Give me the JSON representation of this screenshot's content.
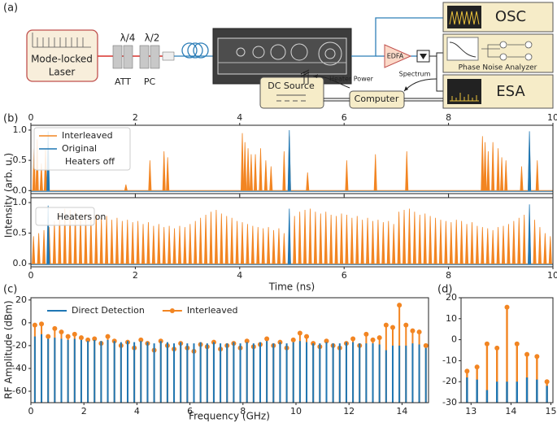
{
  "diagram": {
    "panel_label": "(a)",
    "laser": [
      "Mode-locked",
      "Laser"
    ],
    "att": "ATT",
    "pc": "PC",
    "qwp": "λ/4",
    "hwp": "λ/2",
    "edfa": "EDFA",
    "osc": "OSC",
    "pna": "Phase Noise Analyzer",
    "esa": "ESA",
    "dc_source": "DC Source",
    "heater_power": "Heater Power",
    "spectrum": "Spectrum",
    "computer": "Computer"
  },
  "chart_data": [
    {
      "type": "spike",
      "panel_label": "(b)",
      "xlim": [
        0,
        10
      ],
      "ylim": [
        -0.05,
        1.08
      ],
      "xticks": [
        0,
        2,
        4,
        6,
        8,
        10
      ],
      "yticks": [
        {
          "value": 0,
          "label": "0.0"
        },
        0.5,
        {
          "value": 1,
          "label": "1.0"
        }
      ],
      "legend": "upper left",
      "annotation": "Heaters off",
      "series": [
        {
          "name": "Interleaved",
          "color": "#f28522",
          "x": [
            0.06,
            0.12,
            0.2,
            0.28,
            1.82,
            2.28,
            2.55,
            2.62,
            4.05,
            4.1,
            4.16,
            4.22,
            4.3,
            4.4,
            4.5,
            4.6,
            4.85,
            4.95,
            5.3,
            6.05,
            6.6,
            7.2,
            8.65,
            8.7,
            8.76,
            8.85,
            8.95,
            9.02,
            9.1,
            9.4,
            9.55,
            9.7
          ],
          "values": [
            0.7,
            0.85,
            0.45,
            0.7,
            0.1,
            0.5,
            0.65,
            0.55,
            0.95,
            0.8,
            0.7,
            0.6,
            0.6,
            0.7,
            0.5,
            0.4,
            0.65,
            0.9,
            0.3,
            0.5,
            0.6,
            0.65,
            0.9,
            0.8,
            0.65,
            0.8,
            0.7,
            0.55,
            0.5,
            0.4,
            0.85,
            0.5
          ]
        },
        {
          "name": "Original",
          "color": "#1f77b4",
          "x": [
            0.33,
            4.95,
            9.55
          ],
          "values": [
            0.98,
            1.0,
            0.98
          ]
        }
      ]
    },
    {
      "type": "spike",
      "xlim": [
        0,
        10
      ],
      "ylim": [
        -0.05,
        1.08
      ],
      "xticks": [
        0,
        2,
        4,
        6,
        8,
        10
      ],
      "yticks": [
        {
          "value": 0,
          "label": "0.0"
        },
        0.5,
        {
          "value": 1,
          "label": "1.0"
        }
      ],
      "x_label": "Time (ns)",
      "y_label": "Intensity (arb. u.)",
      "annotation": "Heaters on",
      "series": [
        {
          "color": "#f28522",
          "x": [
            0.05,
            0.15,
            0.25,
            0.35,
            0.45,
            0.55,
            0.65,
            0.75,
            0.85,
            0.95,
            1.05,
            1.15,
            1.25,
            1.35,
            1.45,
            1.55,
            1.65,
            1.75,
            1.85,
            1.95,
            2.05,
            2.15,
            2.25,
            2.35,
            2.45,
            2.55,
            2.65,
            2.75,
            2.85,
            2.95,
            3.05,
            3.15,
            3.25,
            3.35,
            3.45,
            3.55,
            3.65,
            3.75,
            3.85,
            3.95,
            4.05,
            4.15,
            4.25,
            4.35,
            4.45,
            4.55,
            4.65,
            4.75,
            4.85,
            4.95,
            5.05,
            5.15,
            5.25,
            5.35,
            5.45,
            5.55,
            5.65,
            5.75,
            5.85,
            5.95,
            6.05,
            6.15,
            6.25,
            6.35,
            6.45,
            6.55,
            6.65,
            6.75,
            6.85,
            6.95,
            7.05,
            7.15,
            7.25,
            7.35,
            7.45,
            7.55,
            7.65,
            7.75,
            7.85,
            7.95,
            8.05,
            8.15,
            8.25,
            8.35,
            8.45,
            8.55,
            8.65,
            8.75,
            8.85,
            8.95,
            9.05,
            9.15,
            9.25,
            9.35,
            9.45,
            9.55,
            9.65,
            9.75,
            9.85,
            9.95
          ],
          "values": [
            0.45,
            0.5,
            0.55,
            0.6,
            0.7,
            0.85,
            0.9,
            0.88,
            0.85,
            0.8,
            0.82,
            0.78,
            0.8,
            0.75,
            0.78,
            0.72,
            0.75,
            0.7,
            0.72,
            0.68,
            0.7,
            0.65,
            0.68,
            0.62,
            0.65,
            0.6,
            0.62,
            0.58,
            0.62,
            0.6,
            0.65,
            0.7,
            0.75,
            0.8,
            0.85,
            0.88,
            0.82,
            0.78,
            0.75,
            0.7,
            0.68,
            0.65,
            0.62,
            0.6,
            0.58,
            0.6,
            0.55,
            0.58,
            0.5,
            0.45,
            0.78,
            0.85,
            0.88,
            0.9,
            0.85,
            0.82,
            0.85,
            0.8,
            0.78,
            0.82,
            0.8,
            0.75,
            0.78,
            0.72,
            0.75,
            0.7,
            0.72,
            0.68,
            0.7,
            0.65,
            0.85,
            0.88,
            0.9,
            0.85,
            0.8,
            0.82,
            0.78,
            0.75,
            0.72,
            0.7,
            0.68,
            0.72,
            0.7,
            0.65,
            0.68,
            0.62,
            0.6,
            0.58,
            0.55,
            0.6,
            0.62,
            0.65,
            0.7,
            0.75,
            0.8,
            0.78,
            0.72,
            0.6,
            0.5,
            0.45
          ]
        },
        {
          "color": "#1f77b4",
          "x": [
            0.33,
            4.95,
            9.55
          ],
          "values": [
            0.95,
            0.9,
            0.97
          ]
        }
      ]
    },
    {
      "type": "stem",
      "panel_label": "(c)",
      "xlim": [
        0,
        15
      ],
      "ylim": [
        -70,
        22
      ],
      "xticks": [
        0,
        2,
        4,
        6,
        8,
        10,
        12,
        14
      ],
      "yticks": [
        -60,
        -40,
        -20,
        0,
        20
      ],
      "x_label": "Frequency (GHz)",
      "y_label": "RF Amplitude (dBm)",
      "legend": "upper center",
      "x": [
        0.15,
        0.4,
        0.65,
        0.9,
        1.15,
        1.4,
        1.65,
        1.9,
        2.15,
        2.4,
        2.65,
        2.9,
        3.15,
        3.4,
        3.65,
        3.9,
        4.15,
        4.4,
        4.65,
        4.9,
        5.15,
        5.4,
        5.65,
        5.9,
        6.15,
        6.4,
        6.65,
        6.9,
        7.15,
        7.4,
        7.65,
        7.9,
        8.15,
        8.4,
        8.65,
        8.9,
        9.15,
        9.4,
        9.65,
        9.9,
        10.15,
        10.4,
        10.65,
        10.9,
        11.15,
        11.4,
        11.65,
        11.9,
        12.15,
        12.4,
        12.65,
        12.9,
        13.15,
        13.4,
        13.65,
        13.9,
        14.15,
        14.4,
        14.65,
        14.9
      ],
      "series": [
        {
          "name": "Direct Detection",
          "color": "#1f77b4",
          "values": [
            -12,
            -10,
            -14,
            -13,
            -14,
            -15,
            -14,
            -15,
            -16,
            -15,
            -16,
            -15,
            -16,
            -17,
            -16,
            -17,
            -16,
            -17,
            -18,
            -16,
            -17,
            -18,
            -17,
            -18,
            -18,
            -17,
            -18,
            -17,
            -18,
            -18,
            -17,
            -18,
            -17,
            -18,
            -17,
            -16,
            -18,
            -17,
            -18,
            -17,
            -16,
            -17,
            -18,
            -18,
            -17,
            -18,
            -18,
            -17,
            -17,
            -18,
            -18,
            -18,
            -19,
            -24,
            -20,
            -20,
            -20,
            -18,
            -19,
            -22
          ]
        },
        {
          "name": "Interleaved",
          "color": "#f28522",
          "marker": "o",
          "values": [
            -2,
            -1,
            -12,
            -5,
            -8,
            -12,
            -10,
            -13,
            -15,
            -14,
            -18,
            -12,
            -16,
            -20,
            -17,
            -22,
            -15,
            -18,
            -24,
            -16,
            -20,
            -23,
            -18,
            -22,
            -25,
            -19,
            -21,
            -17,
            -23,
            -20,
            -18,
            -22,
            -16,
            -21,
            -19,
            -14,
            -20,
            -17,
            -22,
            -15,
            -9,
            -12,
            -18,
            -21,
            -16,
            -20,
            -22,
            -18,
            -14,
            -20,
            -10,
            -15,
            -13,
            -2,
            -4,
            15.5,
            -2,
            -7,
            -8,
            -20
          ]
        }
      ]
    },
    {
      "type": "stem",
      "panel_label": "(d)",
      "xlim": [
        12.75,
        15.05
      ],
      "ylim": [
        -30,
        20
      ],
      "xticks": [
        13,
        14,
        15
      ],
      "yticks": [
        -30,
        -20,
        -10,
        0,
        10,
        20
      ],
      "x": [
        12.9,
        13.15,
        13.4,
        13.65,
        13.9,
        14.15,
        14.4,
        14.65,
        14.9
      ],
      "series": [
        {
          "color": "#1f77b4",
          "values": [
            -18,
            -19,
            -24,
            -20,
            -20,
            -20,
            -18,
            -19,
            -22
          ]
        },
        {
          "color": "#f28522",
          "marker": "o",
          "values": [
            -15,
            -13,
            -2,
            -4,
            15.5,
            -2,
            -7,
            -8,
            -20
          ]
        }
      ]
    }
  ]
}
